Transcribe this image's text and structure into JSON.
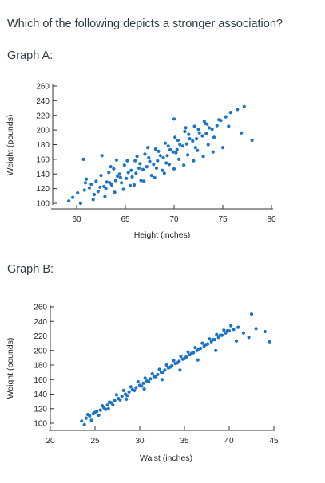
{
  "question": "Which of the following depicts a stronger association?",
  "graph_a_label": "Graph A:",
  "graph_b_label": "Graph B:",
  "chart_data": [
    {
      "type": "scatter",
      "xlabel": "Height (inches)",
      "ylabel": "Weight (pounds)",
      "xlim": [
        58,
        80
      ],
      "ylim": [
        95,
        262
      ],
      "xticks": [
        60,
        65,
        70,
        75,
        80
      ],
      "yticks": [
        100,
        120,
        140,
        160,
        180,
        200,
        220,
        240,
        260
      ],
      "point_color": "#1a73c6",
      "grid": false,
      "x": [
        59.2,
        59.6,
        60.1,
        60.8,
        61.3,
        61.5,
        61.0,
        62.2,
        62.8,
        63.1,
        62.5,
        63.6,
        64.0,
        64.2,
        63.8,
        64.6,
        65.1,
        65.3,
        64.9,
        65.7,
        66.1,
        66.4,
        66.0,
        66.8,
        67.2,
        67.5,
        67.0,
        67.9,
        68.3,
        68.6,
        68.1,
        68.9,
        69.3,
        69.6,
        69.1,
        69.9,
        70.3,
        70.6,
        70.1,
        70.9,
        71.3,
        71.6,
        71.1,
        71.9,
        72.3,
        72.6,
        72.1,
        72.9,
        73.3,
        73.6,
        73.1,
        73.9,
        74.4,
        74.8,
        75.3,
        75.8,
        76.5,
        77.2,
        78.0,
        61.8,
        62.0,
        63.0,
        63.3,
        64.4,
        65.5,
        66.6,
        67.7,
        68.8,
        69.5,
        70.5,
        71.4,
        72.4,
        73.5,
        74.1,
        60.4,
        61.7,
        62.9,
        63.9,
        64.8,
        65.9,
        66.9,
        68.0,
        69.0,
        70.0,
        71.0,
        72.0,
        73.0,
        74.0,
        75.0,
        60.9,
        62.4,
        63.4,
        64.5,
        65.6,
        66.5,
        67.4,
        68.4,
        69.4,
        70.4,
        71.5,
        72.5,
        73.4,
        74.6,
        64.1,
        66.2,
        68.2,
        70.2,
        72.2,
        65.2,
        67.3,
        69.2,
        71.2,
        73.2,
        62.6,
        63.5,
        70.0,
        75.6,
        76.9,
        60.7
      ],
      "y": [
        103,
        108,
        114,
        118,
        121,
        126,
        133,
        116,
        123,
        129,
        138,
        125,
        131,
        137,
        147,
        128,
        134,
        142,
        152,
        136,
        141,
        148,
        158,
        146,
        150,
        157,
        167,
        153,
        158,
        165,
        174,
        162,
        165,
        173,
        182,
        170,
        173,
        180,
        190,
        178,
        181,
        188,
        198,
        185,
        188,
        196,
        205,
        192,
        195,
        203,
        212,
        201,
        206,
        213,
        218,
        224,
        228,
        232,
        186,
        112,
        130,
        120,
        142,
        140,
        124,
        131,
        138,
        145,
        153,
        160,
        166,
        172,
        180,
        190,
        100,
        105,
        109,
        115,
        119,
        125,
        130,
        135,
        141,
        147,
        152,
        158,
        164,
        170,
        176,
        128,
        122,
        128,
        135,
        145,
        154,
        162,
        171,
        178,
        186,
        194,
        201,
        208,
        214,
        159,
        164,
        148,
        169,
        176,
        158,
        176,
        155,
        203,
        209,
        165,
        150,
        215,
        205,
        196,
        160
      ]
    },
    {
      "type": "scatter",
      "xlabel": "Waist (inches)",
      "ylabel": "Weight (pounds)",
      "xlim": [
        20,
        45
      ],
      "ylim": [
        95,
        262
      ],
      "xticks": [
        20,
        25,
        30,
        35,
        40,
        45
      ],
      "yticks": [
        100,
        120,
        140,
        160,
        180,
        200,
        220,
        240,
        260
      ],
      "point_color": "#1a73c6",
      "grid": false,
      "x": [
        23.5,
        24.0,
        24.4,
        24.8,
        25.2,
        25.6,
        26.0,
        26.4,
        26.8,
        27.2,
        27.6,
        28.0,
        28.4,
        28.8,
        29.2,
        29.6,
        30.0,
        30.4,
        30.8,
        31.2,
        31.6,
        32.0,
        32.4,
        32.8,
        33.2,
        33.6,
        34.0,
        34.4,
        34.8,
        35.2,
        35.6,
        36.0,
        36.4,
        36.8,
        37.2,
        37.6,
        38.0,
        38.4,
        38.8,
        39.2,
        39.6,
        40.0,
        40.5,
        41.0,
        41.6,
        42.2,
        43.0,
        44.0,
        24.2,
        25.0,
        25.8,
        26.6,
        27.4,
        28.2,
        29.0,
        29.8,
        30.6,
        31.4,
        32.2,
        33.0,
        33.8,
        34.6,
        35.4,
        36.2,
        37.0,
        37.8,
        38.6,
        39.4,
        40.2,
        23.8,
        24.6,
        25.4,
        26.2,
        27.0,
        27.8,
        28.6,
        29.4,
        30.2,
        31.0,
        31.8,
        32.6,
        33.4,
        34.2,
        35.0,
        35.8,
        36.6,
        37.4,
        38.2,
        39.0,
        39.8,
        26.5,
        28.5,
        30.5,
        32.5,
        34.5,
        36.5,
        38.5,
        40.8,
        42.5,
        44.5
      ],
      "y": [
        103,
        107,
        110,
        113,
        116,
        118,
        121,
        125,
        128,
        131,
        134,
        137,
        140,
        143,
        146,
        149,
        152,
        155,
        158,
        161,
        164,
        167,
        170,
        173,
        176,
        179,
        182,
        185,
        188,
        191,
        194,
        197,
        200,
        203,
        206,
        209,
        212,
        215,
        218,
        221,
        224,
        227,
        229,
        232,
        224,
        218,
        230,
        226,
        112,
        115,
        124,
        129,
        139,
        145,
        150,
        157,
        162,
        168,
        174,
        180,
        186,
        192,
        198,
        204,
        210,
        216,
        222,
        228,
        234,
        98,
        104,
        111,
        119,
        125,
        132,
        138,
        145,
        151,
        157,
        164,
        170,
        177,
        183,
        189,
        196,
        202,
        208,
        215,
        221,
        227,
        120,
        133,
        147,
        160,
        173,
        187,
        200,
        213,
        250,
        212
      ]
    }
  ]
}
